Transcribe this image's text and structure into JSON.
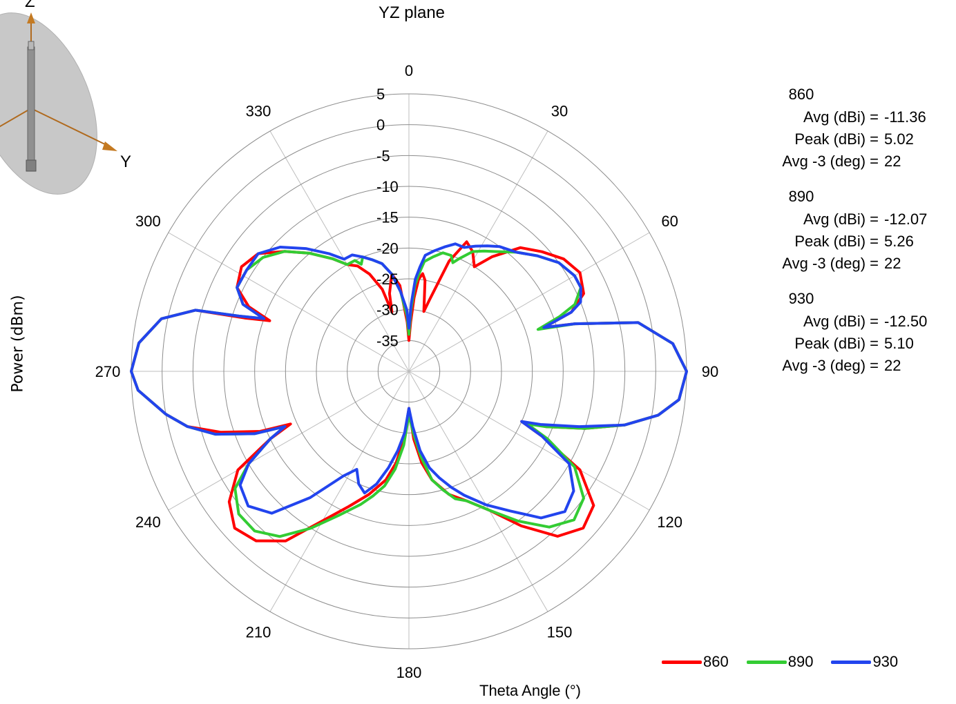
{
  "chart_data": {
    "type": "polar-line",
    "title": "YZ plane",
    "xlabel": "Theta  Angle (°)",
    "ylabel": "Power (dBm)",
    "radial_range": [
      -40,
      5
    ],
    "radial_ticks": [
      "5",
      "0",
      "-5",
      "-10",
      "-15",
      "-20",
      "-25",
      "-30",
      "-35"
    ],
    "angle_ticks": [
      "0",
      "30",
      "60",
      "90",
      "120",
      "150",
      "180",
      "210",
      "240",
      "270",
      "300",
      "330"
    ],
    "grid": true,
    "legend_position": "bottom-right",
    "series": [
      {
        "name": "860",
        "color": "#ff0000",
        "points": [
          [
            0,
            -35
          ],
          [
            2,
            -32
          ],
          [
            4,
            -28
          ],
          [
            6,
            -25
          ],
          [
            8,
            -24
          ],
          [
            10,
            -25
          ],
          [
            12,
            -28
          ],
          [
            14,
            -30
          ],
          [
            16,
            -28
          ],
          [
            20,
            -21
          ],
          [
            24,
            -17
          ],
          [
            28,
            -18
          ],
          [
            32,
            -20
          ],
          [
            36,
            -17
          ],
          [
            42,
            -13
          ],
          [
            48,
            -11
          ],
          [
            54,
            -9
          ],
          [
            60,
            -8
          ],
          [
            66,
            -9
          ],
          [
            70,
            -12
          ],
          [
            72,
            -17
          ],
          [
            74,
            -12
          ],
          [
            78,
            -2
          ],
          [
            84,
            3
          ],
          [
            90,
            5
          ],
          [
            96,
            4
          ],
          [
            100,
            1
          ],
          [
            104,
            -4
          ],
          [
            108,
            -10
          ],
          [
            112,
            -16
          ],
          [
            114,
            -20
          ],
          [
            116,
            -16
          ],
          [
            120,
            -8
          ],
          [
            126,
            -3
          ],
          [
            132,
            -2
          ],
          [
            138,
            -4
          ],
          [
            144,
            -9
          ],
          [
            150,
            -14
          ],
          [
            156,
            -17
          ],
          [
            162,
            -19
          ],
          [
            168,
            -22
          ],
          [
            172,
            -25
          ],
          [
            176,
            -29
          ],
          [
            180,
            -34
          ],
          [
            184,
            -29
          ],
          [
            188,
            -25
          ],
          [
            192,
            -22
          ],
          [
            198,
            -19
          ],
          [
            204,
            -16
          ],
          [
            210,
            -12
          ],
          [
            216,
            -6
          ],
          [
            222,
            -3
          ],
          [
            228,
            -2
          ],
          [
            234,
            -4
          ],
          [
            240,
            -8
          ],
          [
            244,
            -15
          ],
          [
            246,
            -19
          ],
          [
            248,
            -14
          ],
          [
            252,
            -8
          ],
          [
            256,
            -3
          ],
          [
            260,
            0
          ],
          [
            266,
            4
          ],
          [
            270,
            5
          ],
          [
            276,
            4
          ],
          [
            282,
            1
          ],
          [
            286,
            -4
          ],
          [
            288,
            -12
          ],
          [
            290,
            -16
          ],
          [
            292,
            -12
          ],
          [
            296,
            -9
          ],
          [
            302,
            -8
          ],
          [
            308,
            -9
          ],
          [
            314,
            -12
          ],
          [
            320,
            -15
          ],
          [
            326,
            -18
          ],
          [
            330,
            -20
          ],
          [
            334,
            -21
          ],
          [
            338,
            -23
          ],
          [
            342,
            -26
          ],
          [
            344,
            -30
          ],
          [
            346,
            -27
          ],
          [
            350,
            -24
          ],
          [
            354,
            -26
          ],
          [
            358,
            -32
          ],
          [
            360,
            -35
          ]
        ]
      },
      {
        "name": "890",
        "color": "#33cc33",
        "points": [
          [
            0,
            -34
          ],
          [
            2,
            -30
          ],
          [
            4,
            -26
          ],
          [
            6,
            -24
          ],
          [
            8,
            -22
          ],
          [
            12,
            -21
          ],
          [
            16,
            -20
          ],
          [
            20,
            -20
          ],
          [
            22,
            -21
          ],
          [
            24,
            -20
          ],
          [
            28,
            -18
          ],
          [
            32,
            -17
          ],
          [
            36,
            -16
          ],
          [
            42,
            -14
          ],
          [
            48,
            -12
          ],
          [
            54,
            -10
          ],
          [
            60,
            -9
          ],
          [
            64,
            -9
          ],
          [
            68,
            -11
          ],
          [
            70,
            -14
          ],
          [
            72,
            -18
          ],
          [
            74,
            -12
          ],
          [
            78,
            -2
          ],
          [
            84,
            3
          ],
          [
            90,
            5
          ],
          [
            96,
            4
          ],
          [
            100,
            1
          ],
          [
            104,
            -4
          ],
          [
            108,
            -10
          ],
          [
            112,
            -16
          ],
          [
            114,
            -19
          ],
          [
            116,
            -15
          ],
          [
            120,
            -9
          ],
          [
            126,
            -5
          ],
          [
            132,
            -4
          ],
          [
            138,
            -6
          ],
          [
            144,
            -10
          ],
          [
            150,
            -14
          ],
          [
            156,
            -17
          ],
          [
            160,
            -18
          ],
          [
            164,
            -20
          ],
          [
            168,
            -22
          ],
          [
            172,
            -26
          ],
          [
            176,
            -30
          ],
          [
            180,
            -33
          ],
          [
            184,
            -28
          ],
          [
            188,
            -24
          ],
          [
            192,
            -21
          ],
          [
            196,
            -19
          ],
          [
            200,
            -17
          ],
          [
            206,
            -14
          ],
          [
            212,
            -10
          ],
          [
            218,
            -6
          ],
          [
            224,
            -4
          ],
          [
            230,
            -4
          ],
          [
            236,
            -6
          ],
          [
            240,
            -10
          ],
          [
            244,
            -15
          ],
          [
            246,
            -18
          ],
          [
            248,
            -13
          ],
          [
            252,
            -7
          ],
          [
            256,
            -3
          ],
          [
            260,
            0
          ],
          [
            266,
            4
          ],
          [
            270,
            5
          ],
          [
            276,
            4
          ],
          [
            282,
            1
          ],
          [
            286,
            -4
          ],
          [
            288,
            -11
          ],
          [
            290,
            -15
          ],
          [
            292,
            -11
          ],
          [
            296,
            -9
          ],
          [
            302,
            -9
          ],
          [
            308,
            -10
          ],
          [
            314,
            -12
          ],
          [
            320,
            -15
          ],
          [
            326,
            -18
          ],
          [
            330,
            -20
          ],
          [
            334,
            -20
          ],
          [
            336,
            -21
          ],
          [
            338,
            -20
          ],
          [
            342,
            -21
          ],
          [
            346,
            -22
          ],
          [
            350,
            -24
          ],
          [
            354,
            -27
          ],
          [
            358,
            -31
          ],
          [
            360,
            -34
          ]
        ]
      },
      {
        "name": "930",
        "color": "#2244ee",
        "points": [
          [
            0,
            -33
          ],
          [
            2,
            -29
          ],
          [
            4,
            -25
          ],
          [
            6,
            -23
          ],
          [
            8,
            -21
          ],
          [
            12,
            -20
          ],
          [
            16,
            -19
          ],
          [
            20,
            -18
          ],
          [
            24,
            -18
          ],
          [
            28,
            -17
          ],
          [
            32,
            -16
          ],
          [
            36,
            -15
          ],
          [
            42,
            -14
          ],
          [
            48,
            -12
          ],
          [
            54,
            -10
          ],
          [
            60,
            -9
          ],
          [
            64,
            -9
          ],
          [
            68,
            -10
          ],
          [
            70,
            -12
          ],
          [
            72,
            -17
          ],
          [
            74,
            -12
          ],
          [
            78,
            -2
          ],
          [
            84,
            3
          ],
          [
            90,
            5
          ],
          [
            96,
            4
          ],
          [
            100,
            1
          ],
          [
            104,
            -4
          ],
          [
            108,
            -11
          ],
          [
            112,
            -17
          ],
          [
            114,
            -20
          ],
          [
            116,
            -16
          ],
          [
            120,
            -10
          ],
          [
            126,
            -7
          ],
          [
            132,
            -6
          ],
          [
            138,
            -8
          ],
          [
            144,
            -12
          ],
          [
            150,
            -15
          ],
          [
            156,
            -18
          ],
          [
            160,
            -20
          ],
          [
            164,
            -22
          ],
          [
            168,
            -24
          ],
          [
            172,
            -27
          ],
          [
            176,
            -31
          ],
          [
            180,
            -34
          ],
          [
            184,
            -30
          ],
          [
            188,
            -27
          ],
          [
            192,
            -24
          ],
          [
            196,
            -21
          ],
          [
            200,
            -19
          ],
          [
            204,
            -20
          ],
          [
            208,
            -22
          ],
          [
            212,
            -20
          ],
          [
            218,
            -14
          ],
          [
            224,
            -8
          ],
          [
            230,
            -6
          ],
          [
            236,
            -7
          ],
          [
            240,
            -10
          ],
          [
            244,
            -15
          ],
          [
            246,
            -18
          ],
          [
            248,
            -13
          ],
          [
            252,
            -7
          ],
          [
            256,
            -3
          ],
          [
            260,
            0
          ],
          [
            266,
            4
          ],
          [
            270,
            5
          ],
          [
            276,
            4
          ],
          [
            282,
            1
          ],
          [
            286,
            -4
          ],
          [
            288,
            -11
          ],
          [
            290,
            -15
          ],
          [
            292,
            -11
          ],
          [
            296,
            -9
          ],
          [
            302,
            -9
          ],
          [
            308,
            -9
          ],
          [
            314,
            -11
          ],
          [
            320,
            -14
          ],
          [
            326,
            -17
          ],
          [
            330,
            -19
          ],
          [
            334,
            -19
          ],
          [
            338,
            -20
          ],
          [
            342,
            -21
          ],
          [
            346,
            -22
          ],
          [
            350,
            -24
          ],
          [
            354,
            -27
          ],
          [
            358,
            -30
          ],
          [
            360,
            -33
          ]
        ]
      }
    ]
  },
  "stats": [
    {
      "name": "860",
      "rows": [
        {
          "label": "Avg (dBi) =",
          "value": "-11.36"
        },
        {
          "label": "Peak (dBi) =",
          "value": "5.02"
        },
        {
          "label": "Avg -3 (deg) =",
          "value": "22"
        }
      ]
    },
    {
      "name": "890",
      "rows": [
        {
          "label": "Avg (dBi) =",
          "value": "-12.07"
        },
        {
          "label": "Peak (dBi) =",
          "value": "5.26"
        },
        {
          "label": "Avg -3 (deg) =",
          "value": "22"
        }
      ]
    },
    {
      "name": "930",
      "rows": [
        {
          "label": "Avg (dBi) =",
          "value": "-12.50"
        },
        {
          "label": "Peak (dBi) =",
          "value": "5.10"
        },
        {
          "label": "Avg -3 (deg) =",
          "value": "22"
        }
      ]
    }
  ],
  "axis_icon": {
    "z_label": "Z",
    "y_label": "Y"
  }
}
